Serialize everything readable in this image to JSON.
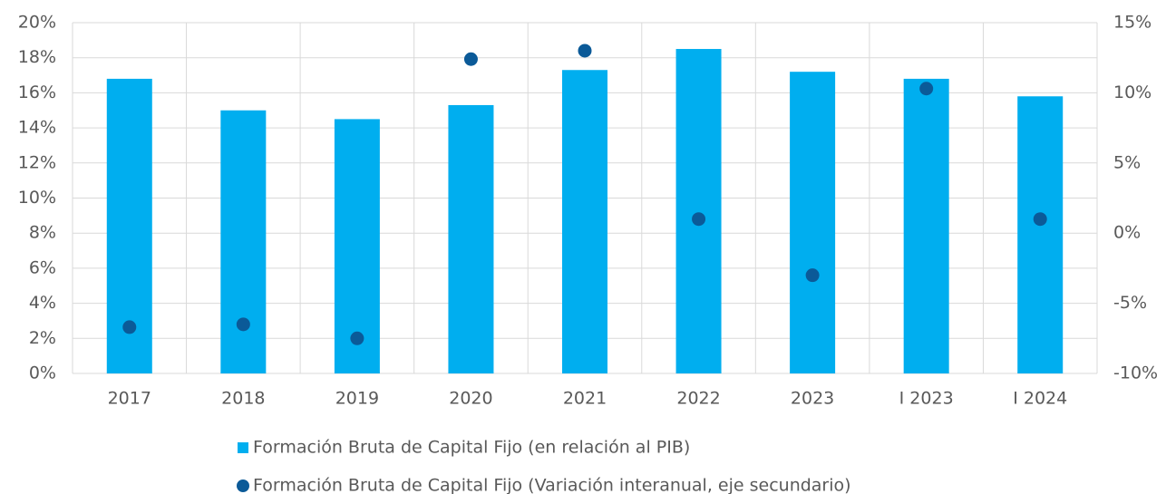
{
  "chart_data": {
    "type": "bar",
    "categories": [
      "2017",
      "2018",
      "2019",
      "2020",
      "2021",
      "2022",
      "2023",
      "I 2023",
      "I 2024"
    ],
    "series": [
      {
        "name": "Formación Bruta de Capital Fijo (en relación al PIB)",
        "type": "bar",
        "color": "#00aeef",
        "values": [
          16.8,
          15.0,
          14.5,
          15.3,
          17.3,
          18.5,
          17.2,
          16.8,
          15.8
        ]
      },
      {
        "name": "Formación Bruta de Capital Fijo (Variación interanual, eje secundario)",
        "type": "scatter",
        "axis": "y2",
        "color": "#0b5a98",
        "values": [
          -6.7,
          -6.5,
          -7.5,
          12.4,
          13.0,
          1.0,
          -3.0,
          10.3,
          1.0
        ]
      }
    ],
    "ylim": [
      0,
      20
    ],
    "yticks": [
      {
        "value": 0,
        "label": "0%"
      },
      {
        "value": 2,
        "label": "2%"
      },
      {
        "value": 4,
        "label": "4%"
      },
      {
        "value": 6,
        "label": "6%"
      },
      {
        "value": 8,
        "label": "8%"
      },
      {
        "value": 10,
        "label": "10%"
      },
      {
        "value": 12,
        "label": "12%"
      },
      {
        "value": 14,
        "label": "14%"
      },
      {
        "value": 16,
        "label": "16%"
      },
      {
        "value": 18,
        "label": "18%"
      },
      {
        "value": 20,
        "label": "20%"
      }
    ],
    "y2lim": [
      -10,
      15
    ],
    "y2ticks": [
      {
        "value": -10,
        "label": "-10%"
      },
      {
        "value": -5,
        "label": "-5%"
      },
      {
        "value": 0,
        "label": "0%"
      },
      {
        "value": 5,
        "label": "5%"
      },
      {
        "value": 10,
        "label": "10%"
      },
      {
        "value": 15,
        "label": "15%"
      }
    ],
    "grid": true,
    "legend": "bottom"
  }
}
